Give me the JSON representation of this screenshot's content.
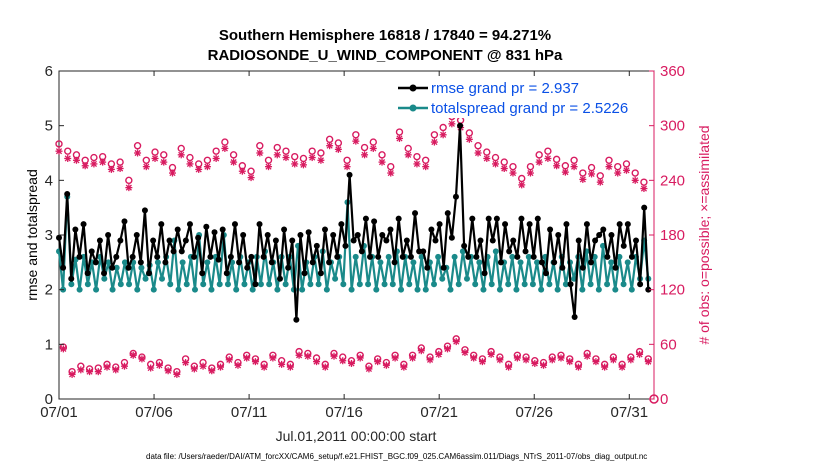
{
  "chart_data": {
    "type": "line",
    "title_line1": "Southern Hemisphere 16818 / 17840 = 94.271%",
    "title_line2": "RADIOSONDE_U_WIND_COMPONENT @ 831 hPa",
    "xlabel": "Jul.01,2011 00:00:00 start",
    "ylabel_left": "rmse and totalspread",
    "ylabel_right": "# of obs: o=possible; ×=assimilated",
    "footer": "data file: /Users/raeder/DAI/ATM_forcXX/CAM6_setup/f.e21.FHIST_BGC.f09_025.CAM6assim.011/Diags_NTrS_2011-07/obs_diag_output.nc",
    "x_ticks": [
      "07/01",
      "07/06",
      "07/11",
      "07/16",
      "07/21",
      "07/26",
      "07/31"
    ],
    "y_left_ticks": [
      "0",
      "1",
      "2",
      "3",
      "4",
      "5",
      "6"
    ],
    "y_right_ticks": [
      "0",
      "60",
      "120",
      "180",
      "240",
      "300",
      "360"
    ],
    "ylim_left": [
      0,
      6
    ],
    "ylim_right": [
      0,
      360
    ],
    "xlim_days": [
      0,
      31.3
    ],
    "colors": {
      "rmse": "#000000",
      "totalspread": "#1a8a8a",
      "obs": "#d81b60",
      "legend_text": "#0a50e6"
    },
    "series": [
      {
        "name": "rmse grand pr = 2.937",
        "values": [
          2.95,
          2.4,
          3.75,
          2.2,
          3.1,
          2.6,
          3.2,
          2.3,
          2.7,
          2.5,
          2.9,
          2.3,
          3.0,
          2.4,
          2.6,
          2.9,
          3.25,
          2.4,
          2.6,
          3.0,
          2.5,
          3.45,
          2.3,
          2.9,
          2.6,
          3.2,
          2.5,
          2.9,
          2.7,
          3.1,
          2.7,
          2.9,
          3.2,
          2.6,
          2.95,
          2.3,
          3.15,
          2.6,
          3.05,
          2.55,
          3.1,
          2.3,
          2.6,
          3.2,
          2.5,
          3.0,
          2.4,
          2.6,
          2.1,
          3.2,
          2.6,
          3.0,
          2.5,
          2.9,
          2.2,
          3.1,
          2.4,
          2.9,
          1.45,
          3.0,
          2.3,
          3.05,
          2.5,
          2.8,
          2.3,
          3.1,
          2.5,
          3.0,
          2.6,
          3.2,
          2.8,
          4.1,
          2.9,
          3.0,
          2.7,
          3.3,
          2.6,
          3.25,
          2.6,
          3.0,
          2.9,
          3.1,
          2.5,
          3.3,
          2.6,
          2.9,
          2.6,
          3.4,
          2.7,
          2.7,
          2.4,
          3.1,
          2.9,
          3.2,
          2.4,
          3.4,
          2.95,
          3.7,
          5.0,
          2.8,
          2.6,
          3.3,
          2.6,
          2.9,
          2.3,
          3.3,
          2.9,
          3.3,
          2.5,
          3.2,
          2.7,
          2.9,
          2.6,
          3.3,
          2.7,
          3.2,
          2.6,
          3.3,
          2.5,
          2.3,
          3.1,
          2.5,
          3.0,
          2.4,
          3.2,
          2.1,
          1.5,
          2.9,
          2.4,
          3.2,
          2.5,
          2.9,
          3.0,
          3.1,
          2.6,
          3.0,
          2.4,
          3.2,
          2.8,
          3.2,
          2.6,
          2.9,
          2.1,
          3.5,
          2.0
        ]
      },
      {
        "name": "totalspread grand pr = 2.5226",
        "values": [
          2.7,
          2.0,
          3.7,
          2.1,
          2.55,
          2.0,
          2.6,
          2.1,
          2.5,
          2.0,
          2.6,
          2.2,
          2.5,
          2.0,
          2.4,
          2.1,
          2.5,
          2.1,
          2.5,
          2.0,
          2.4,
          2.2,
          2.45,
          2.0,
          2.5,
          2.2,
          2.6,
          2.1,
          2.9,
          2.0,
          2.5,
          2.1,
          2.6,
          2.0,
          3.0,
          2.1,
          2.5,
          2.0,
          2.6,
          2.1,
          3.0,
          2.1,
          2.5,
          2.0,
          2.6,
          2.1,
          2.5,
          2.0,
          2.6,
          2.1,
          2.7,
          2.1,
          2.5,
          2.0,
          2.6,
          2.1,
          2.6,
          2.0,
          2.8,
          2.0,
          2.5,
          2.1,
          2.6,
          2.1,
          2.7,
          2.0,
          2.5,
          2.2,
          2.6,
          2.1,
          3.6,
          2.0,
          2.6,
          2.1,
          2.8,
          2.1,
          2.6,
          2.0,
          2.5,
          2.1,
          2.6,
          2.1,
          2.7,
          2.0,
          2.6,
          2.1,
          2.5,
          2.0,
          2.6,
          2.0,
          2.5,
          2.1,
          2.6,
          2.2,
          2.4,
          2.0,
          2.6,
          2.1,
          2.7,
          2.2,
          2.6,
          2.1,
          2.5,
          2.0,
          2.6,
          2.1,
          2.7,
          2.0,
          2.5,
          2.1,
          2.6,
          2.0,
          2.5,
          2.1,
          2.6,
          2.1,
          2.5,
          2.0,
          2.6,
          2.1,
          2.5,
          2.0,
          2.6,
          2.1,
          2.5,
          2.2,
          2.6,
          2.0,
          2.7,
          2.1,
          2.6,
          2.0,
          2.8,
          2.1,
          2.5,
          2.0,
          2.6,
          2.1,
          2.5,
          2.0,
          2.6,
          2.2,
          2.9,
          2.2
        ]
      },
      {
        "name": "possible",
        "axis": "right",
        "values": [
          280,
          57,
          272,
          30,
          268,
          36,
          262,
          33,
          265,
          34,
          266,
          38,
          258,
          35,
          260,
          40,
          240,
          50,
          278,
          46,
          262,
          38,
          271,
          40,
          268,
          34,
          254,
          30,
          275,
          44,
          265,
          36,
          258,
          40,
          262,
          34,
          272,
          38,
          282,
          46,
          268,
          40,
          256,
          48,
          250,
          44,
          278,
          38,
          262,
          48,
          276,
          42,
          272,
          38,
          266,
          52,
          264,
          50,
          272,
          45,
          270,
          38,
          285,
          50,
          281,
          46,
          262,
          42,
          290,
          48,
          276,
          36,
          282,
          44,
          268,
          40,
          255,
          48,
          293,
          38,
          275,
          48,
          266,
          56,
          262,
          46,
          290,
          52,
          298,
          58,
          310,
          66,
          306,
          54,
          292,
          48,
          278,
          44,
          271,
          52,
          265,
          46,
          260,
          38,
          255,
          48,
          242,
          46,
          255,
          42,
          268,
          40,
          272,
          46,
          263,
          48,
          256,
          44,
          262,
          38,
          248,
          50,
          254,
          44,
          245,
          38,
          262,
          46,
          255,
          38,
          258,
          46,
          248,
          52,
          238,
          44
        ]
      },
      {
        "name": "assimilated",
        "axis": "right",
        "values": [
          272,
          55,
          264,
          27,
          262,
          32,
          256,
          30,
          258,
          30,
          260,
          35,
          252,
          32,
          253,
          36,
          232,
          48,
          270,
          44,
          255,
          34,
          264,
          37,
          260,
          31,
          248,
          27,
          268,
          40,
          258,
          33,
          252,
          36,
          255,
          31,
          264,
          35,
          275,
          43,
          260,
          37,
          250,
          45,
          243,
          41,
          270,
          35,
          255,
          45,
          268,
          38,
          265,
          35,
          258,
          48,
          257,
          47,
          265,
          41,
          262,
          35,
          278,
          47,
          274,
          42,
          255,
          39,
          283,
          45,
          268,
          33,
          275,
          41,
          260,
          37,
          248,
          45,
          286,
          35,
          268,
          45,
          258,
          53,
          255,
          43,
          282,
          49,
          290,
          55,
          302,
          63,
          298,
          51,
          285,
          45,
          270,
          41,
          264,
          49,
          258,
          43,
          253,
          35,
          248,
          45,
          235,
          43,
          248,
          39,
          260,
          37,
          264,
          43,
          256,
          45,
          249,
          41,
          255,
          35,
          241,
          47,
          247,
          41,
          238,
          35,
          255,
          43,
          248,
          35,
          251,
          43,
          240,
          49,
          231,
          41
        ]
      }
    ]
  }
}
